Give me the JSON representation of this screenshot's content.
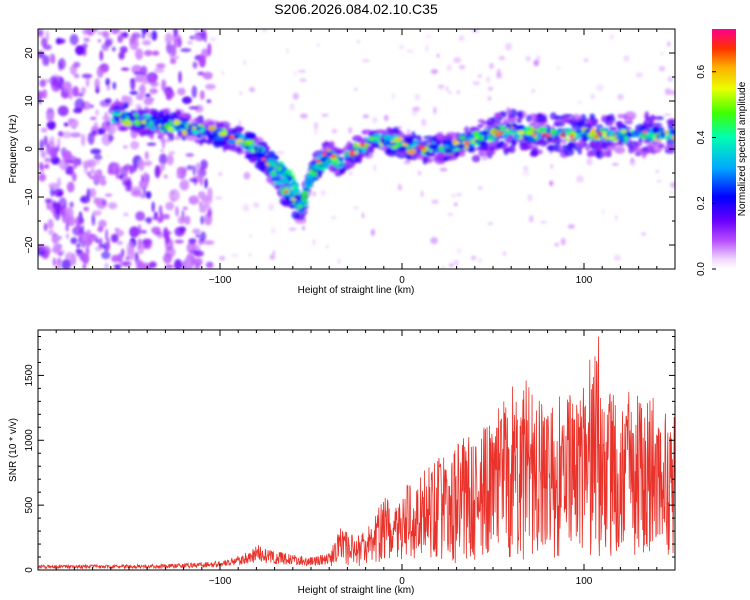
{
  "title": "S206.2026.084.02.10.C35",
  "chart_data": [
    {
      "type": "heatmap",
      "xlabel": "Height of straight line (km)",
      "ylabel": "Frequency (Hz)",
      "xlim": [
        -200,
        150
      ],
      "ylim": [
        -25,
        25
      ],
      "xticks": [
        -100,
        0,
        100
      ],
      "yticks": [
        -20,
        -10,
        0,
        10,
        20
      ],
      "colorbar": {
        "label": "Normalized spectral amplitude",
        "range": [
          0.0,
          0.73
        ],
        "ticks": [
          0.0,
          0.2,
          0.4,
          0.6
        ]
      },
      "ridge": {
        "x": [
          -158,
          -145,
          -130,
          -115,
          -100,
          -90,
          -80,
          -72,
          -65,
          -60,
          -55,
          -50,
          -45,
          -40,
          -35,
          -30,
          -25,
          -20,
          -10,
          0,
          10,
          20,
          30,
          40,
          50,
          60,
          70,
          80,
          90,
          100,
          110,
          120,
          130,
          140,
          150
        ],
        "y": [
          7,
          6,
          5,
          4,
          3,
          2,
          0,
          -4,
          -8,
          -11,
          -13,
          -5,
          -2,
          -1,
          -3,
          -2,
          0,
          1,
          2,
          1,
          0,
          0,
          1,
          2,
          3,
          4,
          3,
          3,
          3,
          3,
          3,
          3,
          3,
          3,
          3
        ]
      },
      "branch": {
        "x": [
          -72,
          -60,
          -55,
          -50,
          -45,
          -40
        ],
        "y": [
          -2,
          -7,
          -12,
          -6,
          -4,
          -2
        ]
      }
    },
    {
      "type": "line",
      "xlabel": "Height of straight line (km)",
      "ylabel": "SNR (10 * v/v)",
      "xlim": [
        -200,
        150
      ],
      "ylim": [
        0,
        1850
      ],
      "xticks": [
        -100,
        0,
        100
      ],
      "yticks": [
        0,
        500,
        1000,
        1500
      ],
      "color": "#e8322a",
      "envelope": {
        "x": [
          -200,
          -150,
          -120,
          -100,
          -90,
          -80,
          -70,
          -60,
          -50,
          -40,
          -35,
          -30,
          -25,
          -20,
          -15,
          -10,
          -5,
          0,
          10,
          20,
          30,
          40,
          50,
          60,
          70,
          80,
          90,
          100,
          105,
          110,
          120,
          130,
          140,
          150
        ],
        "y": [
          40,
          40,
          50,
          70,
          110,
          200,
          150,
          120,
          100,
          130,
          330,
          360,
          260,
          300,
          500,
          550,
          600,
          630,
          750,
          900,
          1000,
          1050,
          1150,
          1520,
          1450,
          1350,
          1380,
          1450,
          1800,
          1350,
          1400,
          1350,
          1380,
          1400
        ]
      },
      "peak": {
        "x": 108,
        "y": 1800
      }
    }
  ]
}
